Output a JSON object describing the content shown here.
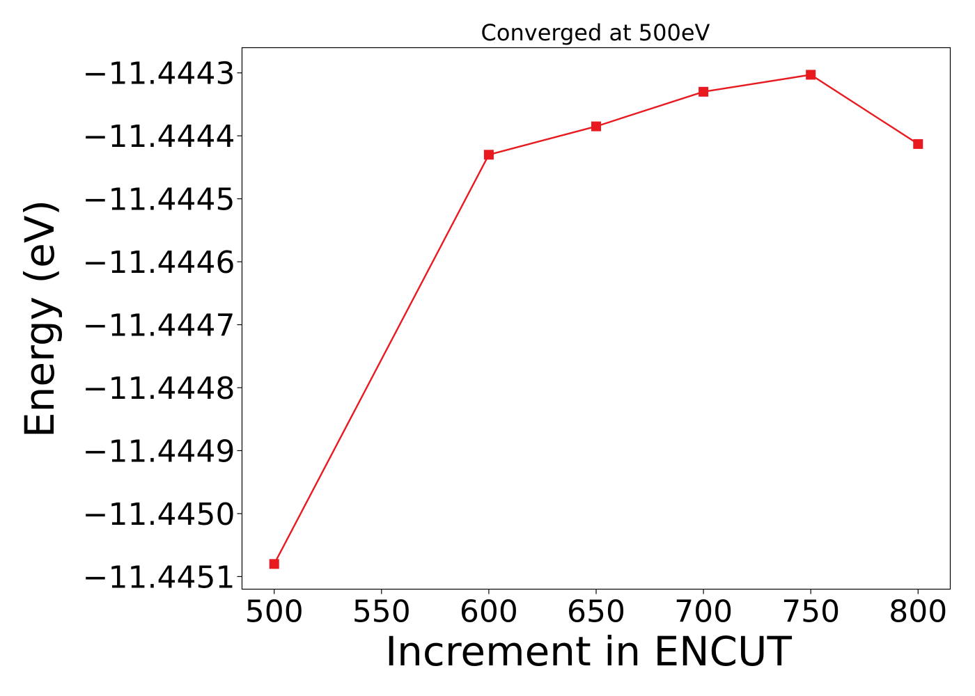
{
  "chart_data": {
    "type": "line",
    "title": "Converged at 500eV",
    "xlabel": "Increment in ENCUT",
    "ylabel": "Energy (eV)",
    "xlim": [
      485,
      815
    ],
    "ylim": [
      -11.44512,
      -11.44426
    ],
    "x_ticks": [
      500,
      550,
      600,
      650,
      700,
      750,
      800
    ],
    "x_tick_labels": [
      "500",
      "550",
      "600",
      "650",
      "700",
      "750",
      "800"
    ],
    "y_ticks": [
      -11.4451,
      -11.445,
      -11.4449,
      -11.4448,
      -11.4447,
      -11.4446,
      -11.4445,
      -11.4444,
      -11.4443
    ],
    "y_tick_labels": [
      "−11.4451",
      "−11.4450",
      "−11.4449",
      "−11.4448",
      "−11.4447",
      "−11.4446",
      "−11.4445",
      "−11.4444",
      "−11.4443"
    ],
    "grid": false,
    "legend": "none",
    "series": [
      {
        "color": "#e8191f",
        "marker": "square",
        "x": [
          500,
          600,
          650,
          700,
          750,
          800
        ],
        "y": [
          -11.44508,
          -11.44443,
          -11.444385,
          -11.44433,
          -11.444303,
          -11.444413
        ]
      }
    ]
  }
}
